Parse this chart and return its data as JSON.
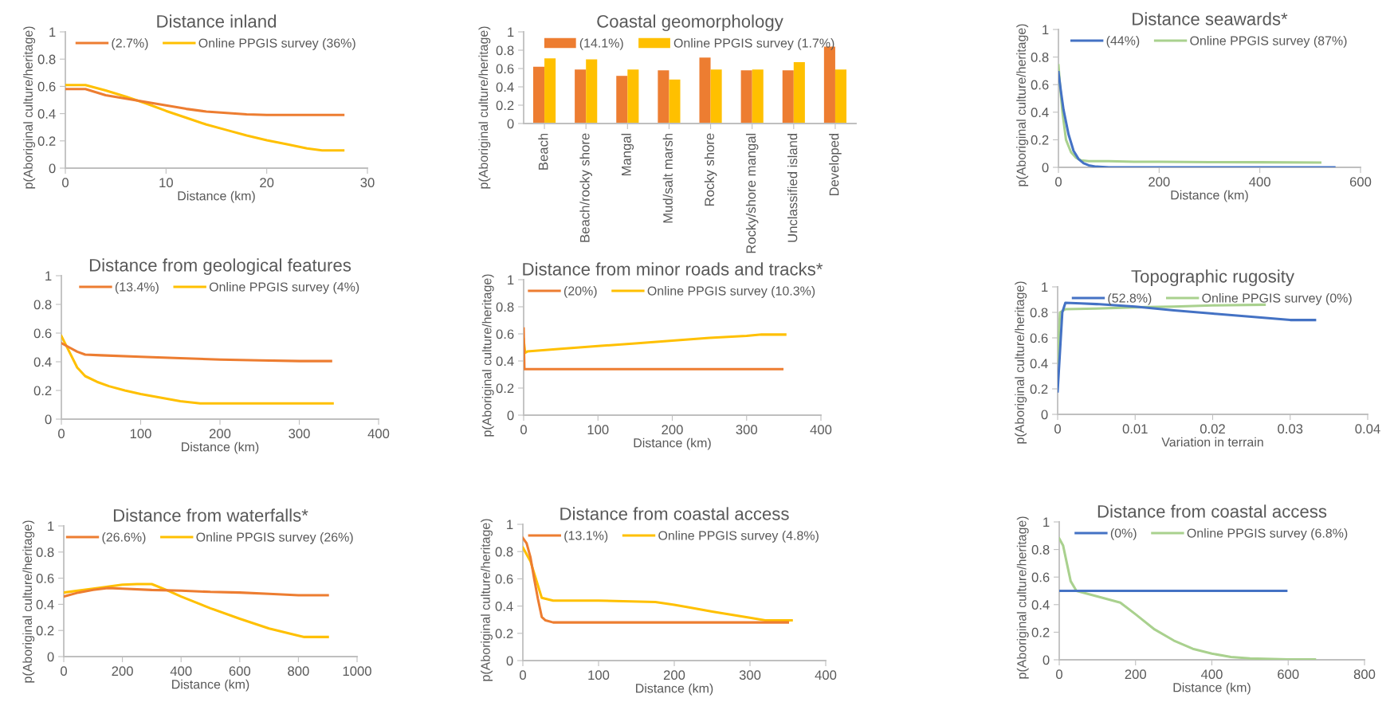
{
  "chart_data": [
    {
      "type": "line",
      "title": "Distance inland",
      "xlabel": "Distance (km)",
      "ylabel": "p(Aboriginal culture/heritage)",
      "xlim": [
        0,
        30
      ],
      "xticks": [
        0,
        10,
        20,
        30
      ],
      "ylim": [
        0,
        1
      ],
      "yticks": [
        0,
        0.2,
        0.4,
        0.6,
        0.8,
        1
      ],
      "legend": "top",
      "series": [
        {
          "name": "(2.7%)",
          "color": "#ed7d31",
          "x": [
            0,
            2,
            4,
            6,
            8,
            10,
            12,
            14,
            16,
            18,
            20,
            22,
            25,
            27.6
          ],
          "values": [
            0.58,
            0.58,
            0.535,
            0.51,
            0.485,
            0.46,
            0.435,
            0.415,
            0.405,
            0.395,
            0.39,
            0.39,
            0.39,
            0.39
          ]
        },
        {
          "name": "Online PPGIS survey (36%)",
          "color": "#ffc000",
          "x": [
            0,
            2,
            4,
            6,
            8,
            10,
            12,
            14,
            16,
            18,
            20,
            22,
            24,
            25.5,
            27.6
          ],
          "values": [
            0.61,
            0.61,
            0.57,
            0.525,
            0.475,
            0.42,
            0.37,
            0.32,
            0.28,
            0.24,
            0.205,
            0.175,
            0.145,
            0.13,
            0.13
          ]
        }
      ]
    },
    {
      "type": "bar",
      "title": "Coastal geomorphology",
      "ylabel": "p(Aboriginal culture/heritage)",
      "ylim": [
        0,
        1
      ],
      "yticks": [
        0,
        0.2,
        0.4,
        0.6,
        0.8,
        1
      ],
      "legend": "top",
      "categories": [
        "Beach",
        "Beach/rocky shore",
        "Mangal",
        "Mud/salt marsh",
        "Rocky shore",
        "Rocky/shore mangal",
        "Unclassified island",
        "Developed"
      ],
      "series": [
        {
          "name": "(14.1%)",
          "color": "#ed7d31",
          "values": [
            0.62,
            0.59,
            0.52,
            0.58,
            0.72,
            0.58,
            0.58,
            0.84
          ]
        },
        {
          "name": "Online PPGIS survey (1.7%)",
          "color": "#ffc000",
          "values": [
            0.71,
            0.7,
            0.59,
            0.48,
            0.59,
            0.59,
            0.67,
            0.59
          ]
        }
      ]
    },
    {
      "type": "line",
      "title": "Distance seawards*",
      "xlabel": "Distance (km)",
      "ylabel": "p(Aboriginal culture/heritage)",
      "xlim": [
        0,
        600
      ],
      "xticks": [
        0,
        200,
        400,
        600
      ],
      "ylim": [
        0,
        1
      ],
      "yticks": [
        0,
        0.2,
        0.4,
        0.6,
        0.8,
        1
      ],
      "legend": "top",
      "series": [
        {
          "name": "(44%)",
          "color": "#4472c4",
          "x": [
            0,
            5,
            10,
            20,
            30,
            40,
            50,
            60,
            75,
            100,
            200,
            300,
            400,
            548
          ],
          "values": [
            0.69,
            0.55,
            0.42,
            0.24,
            0.12,
            0.06,
            0.03,
            0.015,
            0.005,
            0,
            0,
            0,
            0,
            0
          ]
        },
        {
          "name": "Online PPGIS survey (87%)",
          "color": "#a9d18e",
          "x": [
            0,
            3,
            8,
            15,
            25,
            35,
            45,
            60,
            100,
            150,
            200,
            300,
            400,
            520
          ],
          "values": [
            0.74,
            0.6,
            0.4,
            0.2,
            0.11,
            0.07,
            0.05,
            0.045,
            0.045,
            0.04,
            0.04,
            0.038,
            0.037,
            0.035
          ]
        }
      ]
    },
    {
      "type": "line",
      "title": "Distance from geological features",
      "xlabel": "Distance (km)",
      "xlim": [
        0,
        400
      ],
      "xticks": [
        0,
        100,
        200,
        300,
        400
      ],
      "ylim": [
        0,
        1
      ],
      "yticks": [
        0,
        0.2,
        0.4,
        0.6,
        0.8,
        1
      ],
      "legend": "top",
      "series": [
        {
          "name": "(13.4%)",
          "color": "#ed7d31",
          "x": [
            0,
            10,
            20,
            30,
            50,
            100,
            150,
            200,
            250,
            300,
            340
          ],
          "values": [
            0.53,
            0.5,
            0.47,
            0.45,
            0.445,
            0.435,
            0.425,
            0.415,
            0.41,
            0.405,
            0.405
          ]
        },
        {
          "name": "Online PPGIS survey (4%)",
          "color": "#ffc000",
          "x": [
            0,
            10,
            20,
            30,
            45,
            60,
            80,
            100,
            125,
            150,
            175,
            200,
            250,
            300,
            342
          ],
          "values": [
            0.58,
            0.47,
            0.36,
            0.3,
            0.26,
            0.23,
            0.2,
            0.175,
            0.15,
            0.125,
            0.11,
            0.11,
            0.11,
            0.11,
            0.11
          ]
        }
      ]
    },
    {
      "type": "line",
      "title": "Distance from minor roads and tracks*",
      "xlabel": "Distance (km)",
      "ylabel": "p(Aboriginal culture/heritage)",
      "xlim": [
        0,
        400
      ],
      "xticks": [
        0,
        100,
        200,
        300,
        400
      ],
      "ylim": [
        0,
        1
      ],
      "yticks": [
        0,
        0.2,
        0.4,
        0.6,
        0.8,
        1
      ],
      "legend": "top",
      "series": [
        {
          "name": "(20%)",
          "color": "#ed7d31",
          "x": [
            0,
            1,
            2,
            100,
            200,
            300,
            348
          ],
          "values": [
            0.64,
            0.34,
            0.34,
            0.34,
            0.34,
            0.34,
            0.34
          ]
        },
        {
          "name": "Online PPGIS survey (10.3%)",
          "color": "#ffc000",
          "x": [
            0,
            2,
            5,
            50,
            100,
            150,
            200,
            250,
            300,
            320,
            352
          ],
          "values": [
            0.56,
            0.46,
            0.47,
            0.49,
            0.51,
            0.53,
            0.55,
            0.57,
            0.585,
            0.595,
            0.595
          ]
        }
      ]
    },
    {
      "type": "line",
      "title": "Topographic rugosity",
      "xlabel": "Variation in terrain",
      "ylabel": "p(Aboriginal culture/heritage)",
      "xlim": [
        0,
        0.04
      ],
      "xticks": [
        0,
        0.01,
        0.02,
        0.03,
        0.04
      ],
      "ylim": [
        0,
        1
      ],
      "yticks": [
        0,
        0.2,
        0.4,
        0.6,
        0.8,
        1
      ],
      "legend": "top",
      "series": [
        {
          "name": "(52.8%)",
          "color": "#4472c4",
          "x": [
            0,
            0.0006,
            0.001,
            0.003,
            0.005,
            0.01,
            0.015,
            0.02,
            0.025,
            0.03,
            0.0332
          ],
          "values": [
            0.18,
            0.8,
            0.875,
            0.87,
            0.865,
            0.845,
            0.815,
            0.79,
            0.765,
            0.74,
            0.74
          ]
        },
        {
          "name": "Online PPGIS survey (0%)",
          "color": "#a9d18e",
          "x": [
            0,
            0.0003,
            0.001,
            0.005,
            0.01,
            0.015,
            0.02,
            0.0267
          ],
          "values": [
            0.4,
            0.8,
            0.825,
            0.83,
            0.84,
            0.845,
            0.855,
            0.86
          ]
        }
      ]
    },
    {
      "type": "line",
      "title": "Distance from waterfalls*",
      "xlabel": "Distance (km)",
      "ylabel": "p(Aboriginal culture/heritage)",
      "xlim": [
        0,
        1000
      ],
      "xticks": [
        0,
        200,
        400,
        600,
        800,
        1000
      ],
      "ylim": [
        0,
        1
      ],
      "yticks": [
        0,
        0.2,
        0.4,
        0.6,
        0.8,
        1
      ],
      "legend": "top",
      "series": [
        {
          "name": "(26.6%)",
          "color": "#ed7d31",
          "x": [
            0,
            50,
            100,
            150,
            200,
            300,
            400,
            500,
            600,
            700,
            800,
            900
          ],
          "values": [
            0.46,
            0.49,
            0.51,
            0.525,
            0.52,
            0.51,
            0.505,
            0.495,
            0.49,
            0.48,
            0.47,
            0.47
          ]
        },
        {
          "name": "Online PPGIS survey (26%)",
          "color": "#ffc000",
          "x": [
            0,
            100,
            200,
            250,
            300,
            350,
            400,
            500,
            600,
            700,
            800,
            820,
            900
          ],
          "values": [
            0.49,
            0.52,
            0.55,
            0.555,
            0.555,
            0.51,
            0.46,
            0.37,
            0.29,
            0.215,
            0.16,
            0.15,
            0.15
          ]
        }
      ]
    },
    {
      "type": "line",
      "title": "Distance from coastal access",
      "xlabel": "Distance (km)",
      "ylabel": "p(Aboriginal culture/heritage)",
      "xlim": [
        0,
        400
      ],
      "xticks": [
        0,
        100,
        200,
        300,
        400
      ],
      "ylim": [
        0,
        1
      ],
      "yticks": [
        0,
        0.2,
        0.4,
        0.6,
        0.8,
        1
      ],
      "legend": "top",
      "series": [
        {
          "name": "(13.1%)",
          "color": "#ed7d31",
          "x": [
            0,
            5,
            10,
            15,
            20,
            25,
            30,
            40,
            100,
            200,
            300,
            350
          ],
          "values": [
            0.9,
            0.86,
            0.76,
            0.6,
            0.45,
            0.32,
            0.295,
            0.28,
            0.28,
            0.28,
            0.28,
            0.28
          ]
        },
        {
          "name": "Online PPGIS survey (4.8%)",
          "color": "#ffc000",
          "x": [
            0,
            10,
            20,
            25,
            40,
            100,
            175,
            200,
            250,
            300,
            320,
            355
          ],
          "values": [
            0.83,
            0.73,
            0.55,
            0.46,
            0.44,
            0.44,
            0.43,
            0.41,
            0.36,
            0.315,
            0.295,
            0.295
          ]
        }
      ]
    },
    {
      "type": "line",
      "title": "Distance from coastal access",
      "xlabel": "Distance (km)",
      "ylabel": "p(Aboriginal culture/heritage)",
      "xlim": [
        0,
        800
      ],
      "xticks": [
        0,
        200,
        400,
        600,
        800
      ],
      "ylim": [
        0,
        1
      ],
      "yticks": [
        0,
        0.2,
        0.4,
        0.6,
        0.8,
        1
      ],
      "legend": "top",
      "series": [
        {
          "name": "(0%)",
          "color": "#4472c4",
          "x": [
            0,
            595
          ],
          "values": [
            0.5,
            0.5
          ]
        },
        {
          "name": "Online PPGIS survey (6.8%)",
          "color": "#a9d18e",
          "x": [
            0,
            10,
            20,
            30,
            45,
            100,
            160,
            200,
            250,
            300,
            350,
            400,
            450,
            500,
            600,
            670
          ],
          "values": [
            0.88,
            0.83,
            0.7,
            0.57,
            0.5,
            0.46,
            0.415,
            0.33,
            0.22,
            0.14,
            0.08,
            0.045,
            0.02,
            0.01,
            0.003,
            0.003
          ]
        }
      ]
    }
  ]
}
